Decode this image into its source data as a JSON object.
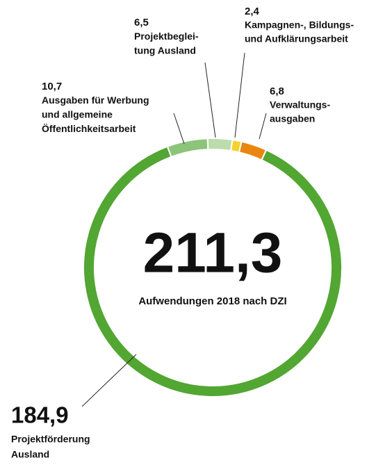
{
  "chart_data": {
    "type": "donut",
    "center_value": "211,3",
    "center_label": "Aufwendungen 2018 nach DZI",
    "categories": [
      [
        "Ausgaben für Werbung",
        "und allgemeine",
        "Öffentlichkeitsarbeit"
      ],
      [
        "Projektbeglei-",
        "tung Ausland"
      ],
      [
        "Kampagnen-, Bildungs-",
        "und Aufklärungsarbeit"
      ],
      [
        "Verwaltungs-",
        "ausgaben"
      ],
      [
        "Projektförderung",
        "Ausland"
      ]
    ],
    "values": [
      10.7,
      6.5,
      2.4,
      6.8,
      184.9
    ],
    "value_labels": [
      "10,7",
      "6,5",
      "2,4",
      "6,8",
      "184,9"
    ],
    "colors": [
      "#8cc47a",
      "#bcdcac",
      "#f3d22e",
      "#e8860f",
      "#52a632"
    ]
  }
}
